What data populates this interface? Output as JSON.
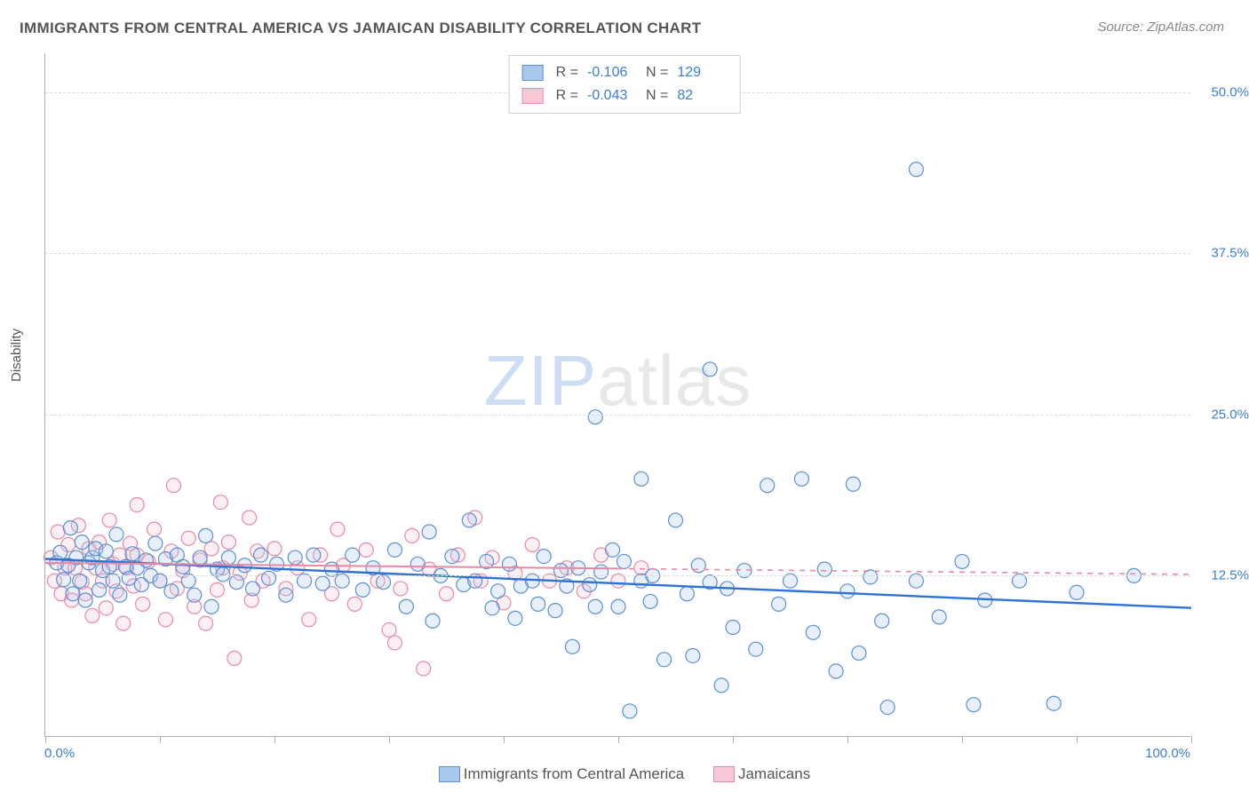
{
  "title": "IMMIGRANTS FROM CENTRAL AMERICA VS JAMAICAN DISABILITY CORRELATION CHART",
  "source": "Source: ZipAtlas.com",
  "watermark": {
    "zip": "ZIP",
    "atlas": "atlas"
  },
  "ylabel": "Disability",
  "chart": {
    "type": "scatter",
    "xlim": [
      0,
      100
    ],
    "ylim": [
      0,
      53
    ],
    "yticks": [
      12.5,
      25.0,
      37.5,
      50.0
    ],
    "ytick_labels": [
      "12.5%",
      "25.0%",
      "37.5%",
      "50.0%"
    ],
    "xticks": [
      0,
      10,
      20,
      30,
      40,
      50,
      60,
      70,
      80,
      90,
      100
    ],
    "x_start_label": "0.0%",
    "x_end_label": "100.0%",
    "background_color": "#ffffff",
    "grid_color": "#dcdcdc",
    "point_radius": 8,
    "series": [
      {
        "name": "Immigrants from Central America",
        "color_fill": "#a9c7ef",
        "color_stroke": "#5b8fd6",
        "R": "-0.106",
        "N": "129",
        "trend": {
          "x1": 0,
          "y1": 13.8,
          "x2": 100,
          "y2": 10.0,
          "color": "#2f72d4",
          "width": 2.4,
          "dash_after_x": null
        },
        "points": [
          [
            1,
            13.5
          ],
          [
            1.3,
            14.3
          ],
          [
            1.6,
            12.2
          ],
          [
            2,
            13.3
          ],
          [
            2.2,
            16.2
          ],
          [
            2.4,
            11.1
          ],
          [
            2.7,
            13.9
          ],
          [
            3,
            12.1
          ],
          [
            3.2,
            15.1
          ],
          [
            3.5,
            10.6
          ],
          [
            3.8,
            13.5
          ],
          [
            4.1,
            13.9
          ],
          [
            4.4,
            14.6
          ],
          [
            4.7,
            11.4
          ],
          [
            5,
            12.9
          ],
          [
            5.3,
            14.4
          ],
          [
            5.6,
            13.2
          ],
          [
            5.9,
            12.1
          ],
          [
            6.2,
            15.7
          ],
          [
            6.5,
            11.0
          ],
          [
            7,
            13.2
          ],
          [
            7.3,
            12.3
          ],
          [
            7.6,
            14.2
          ],
          [
            8,
            13.1
          ],
          [
            8.4,
            11.8
          ],
          [
            8.8,
            13.7
          ],
          [
            9.2,
            12.5
          ],
          [
            9.6,
            15.0
          ],
          [
            10,
            12.1
          ],
          [
            10.5,
            13.8
          ],
          [
            11,
            11.3
          ],
          [
            11.5,
            14.1
          ],
          [
            12,
            13.2
          ],
          [
            12.5,
            12.1
          ],
          [
            13,
            11.0
          ],
          [
            13.5,
            13.9
          ],
          [
            14,
            15.6
          ],
          [
            14.5,
            10.1
          ],
          [
            15,
            13.0
          ],
          [
            15.5,
            12.6
          ],
          [
            16,
            13.9
          ],
          [
            16.7,
            12.0
          ],
          [
            17.4,
            13.3
          ],
          [
            18.1,
            11.5
          ],
          [
            18.8,
            14.1
          ],
          [
            19.5,
            12.3
          ],
          [
            20.2,
            13.4
          ],
          [
            21,
            11.0
          ],
          [
            21.8,
            13.9
          ],
          [
            22.6,
            12.1
          ],
          [
            23.4,
            14.1
          ],
          [
            24.2,
            11.9
          ],
          [
            25,
            13.0
          ],
          [
            25.9,
            12.1
          ],
          [
            26.8,
            14.1
          ],
          [
            27.7,
            11.4
          ],
          [
            28.6,
            13.1
          ],
          [
            29.5,
            12.0
          ],
          [
            30.5,
            14.5
          ],
          [
            31.5,
            10.1
          ],
          [
            32.5,
            13.4
          ],
          [
            33.5,
            15.9
          ],
          [
            33.8,
            9.0
          ],
          [
            34.5,
            12.5
          ],
          [
            35.5,
            14.0
          ],
          [
            36.5,
            11.8
          ],
          [
            37,
            16.8
          ],
          [
            37.5,
            12.1
          ],
          [
            38.5,
            13.6
          ],
          [
            39,
            10.0
          ],
          [
            39.5,
            11.3
          ],
          [
            40.5,
            13.4
          ],
          [
            41,
            9.2
          ],
          [
            41.5,
            11.7
          ],
          [
            42.5,
            12.1
          ],
          [
            43,
            10.3
          ],
          [
            43.5,
            14.0
          ],
          [
            44.5,
            9.8
          ],
          [
            45,
            12.9
          ],
          [
            45.5,
            11.7
          ],
          [
            46,
            7.0
          ],
          [
            46.5,
            13.1
          ],
          [
            47.5,
            11.8
          ],
          [
            48,
            10.1
          ],
          [
            48,
            24.8
          ],
          [
            48.5,
            12.8
          ],
          [
            49.5,
            14.5
          ],
          [
            50,
            10.1
          ],
          [
            50.5,
            13.6
          ],
          [
            51,
            2.0
          ],
          [
            52,
            20.0
          ],
          [
            52,
            12.1
          ],
          [
            52.8,
            10.5
          ],
          [
            53,
            12.5
          ],
          [
            54,
            6.0
          ],
          [
            55,
            16.8
          ],
          [
            56,
            11.1
          ],
          [
            56.5,
            6.3
          ],
          [
            57,
            13.3
          ],
          [
            58,
            28.5
          ],
          [
            58,
            12.0
          ],
          [
            59,
            4.0
          ],
          [
            59.5,
            11.5
          ],
          [
            60,
            8.5
          ],
          [
            61,
            12.9
          ],
          [
            62,
            6.8
          ],
          [
            63,
            19.5
          ],
          [
            64,
            10.3
          ],
          [
            65,
            12.1
          ],
          [
            66,
            20.0
          ],
          [
            67,
            8.1
          ],
          [
            68,
            13.0
          ],
          [
            69,
            5.1
          ],
          [
            70,
            11.3
          ],
          [
            70.5,
            19.6
          ],
          [
            71,
            6.5
          ],
          [
            72,
            12.4
          ],
          [
            73,
            9.0
          ],
          [
            73.5,
            2.3
          ],
          [
            76,
            44.0
          ],
          [
            76,
            12.1
          ],
          [
            78,
            9.3
          ],
          [
            80,
            13.6
          ],
          [
            81,
            2.5
          ],
          [
            82,
            10.6
          ],
          [
            85,
            12.1
          ],
          [
            88,
            2.6
          ],
          [
            90,
            11.2
          ],
          [
            95,
            12.5
          ]
        ]
      },
      {
        "name": "Jamaicans",
        "color_fill": "#f6c7d4",
        "color_stroke": "#e68aa3",
        "R": "-0.043",
        "N": "82",
        "trend": {
          "x1": 0,
          "y1": 13.5,
          "x2": 100,
          "y2": 12.6,
          "color": "#e68aa3",
          "width": 2.0,
          "dash_after_x": 50
        },
        "points": [
          [
            0.5,
            13.9
          ],
          [
            0.8,
            12.1
          ],
          [
            1.1,
            15.9
          ],
          [
            1.4,
            11.1
          ],
          [
            1.7,
            13.1
          ],
          [
            2.0,
            14.9
          ],
          [
            2.3,
            10.6
          ],
          [
            2.6,
            13.1
          ],
          [
            2.9,
            16.4
          ],
          [
            3.2,
            12.0
          ],
          [
            3.5,
            11.1
          ],
          [
            3.8,
            14.6
          ],
          [
            4.1,
            9.4
          ],
          [
            4.4,
            13.1
          ],
          [
            4.7,
            15.1
          ],
          [
            5.0,
            12.1
          ],
          [
            5.3,
            10.0
          ],
          [
            5.6,
            16.8
          ],
          [
            5.9,
            13.4
          ],
          [
            6.2,
            11.3
          ],
          [
            6.5,
            14.1
          ],
          [
            6.8,
            8.8
          ],
          [
            7.1,
            13.1
          ],
          [
            7.4,
            15.0
          ],
          [
            7.7,
            11.7
          ],
          [
            8.0,
            14.1
          ],
          [
            8.0,
            18.0
          ],
          [
            8.5,
            10.3
          ],
          [
            9.0,
            13.6
          ],
          [
            9.5,
            16.1
          ],
          [
            10.0,
            12.1
          ],
          [
            10.5,
            9.1
          ],
          [
            11.0,
            14.4
          ],
          [
            11.2,
            19.5
          ],
          [
            11.5,
            11.5
          ],
          [
            12.0,
            12.9
          ],
          [
            12.5,
            15.4
          ],
          [
            13.0,
            10.1
          ],
          [
            13.5,
            13.7
          ],
          [
            14.0,
            8.8
          ],
          [
            14.5,
            14.6
          ],
          [
            15.0,
            11.4
          ],
          [
            15.3,
            18.2
          ],
          [
            15.5,
            13.1
          ],
          [
            16.5,
            6.1
          ],
          [
            16.0,
            15.1
          ],
          [
            17.0,
            12.7
          ],
          [
            17.8,
            17.0
          ],
          [
            18.0,
            10.6
          ],
          [
            18.5,
            14.4
          ],
          [
            19.0,
            12.1
          ],
          [
            20.0,
            14.6
          ],
          [
            21.0,
            11.5
          ],
          [
            22.0,
            13.1
          ],
          [
            23.0,
            9.1
          ],
          [
            24.0,
            14.1
          ],
          [
            25.0,
            11.1
          ],
          [
            25.5,
            16.1
          ],
          [
            26.0,
            13.3
          ],
          [
            27.0,
            10.3
          ],
          [
            28.0,
            14.5
          ],
          [
            29.0,
            12.1
          ],
          [
            30.0,
            8.3
          ],
          [
            30.5,
            7.3
          ],
          [
            31.0,
            11.5
          ],
          [
            32.0,
            15.6
          ],
          [
            33.0,
            5.3
          ],
          [
            33.5,
            13.0
          ],
          [
            35.0,
            11.1
          ],
          [
            36.0,
            14.1
          ],
          [
            37.5,
            17.0
          ],
          [
            38.0,
            12.1
          ],
          [
            39.0,
            13.9
          ],
          [
            40.0,
            10.4
          ],
          [
            41.0,
            12.7
          ],
          [
            42.5,
            14.9
          ],
          [
            44.0,
            12.1
          ],
          [
            45.5,
            13.1
          ],
          [
            47.0,
            11.3
          ],
          [
            48.5,
            14.1
          ],
          [
            50.0,
            12.1
          ],
          [
            52.0,
            13.1
          ]
        ]
      }
    ]
  },
  "legend_bottom": [
    {
      "label": "Immigrants from Central America",
      "fill": "#a9c7ef",
      "stroke": "#5b8fd6"
    },
    {
      "label": "Jamaicans",
      "fill": "#f6c7d4",
      "stroke": "#e68aa3"
    }
  ]
}
